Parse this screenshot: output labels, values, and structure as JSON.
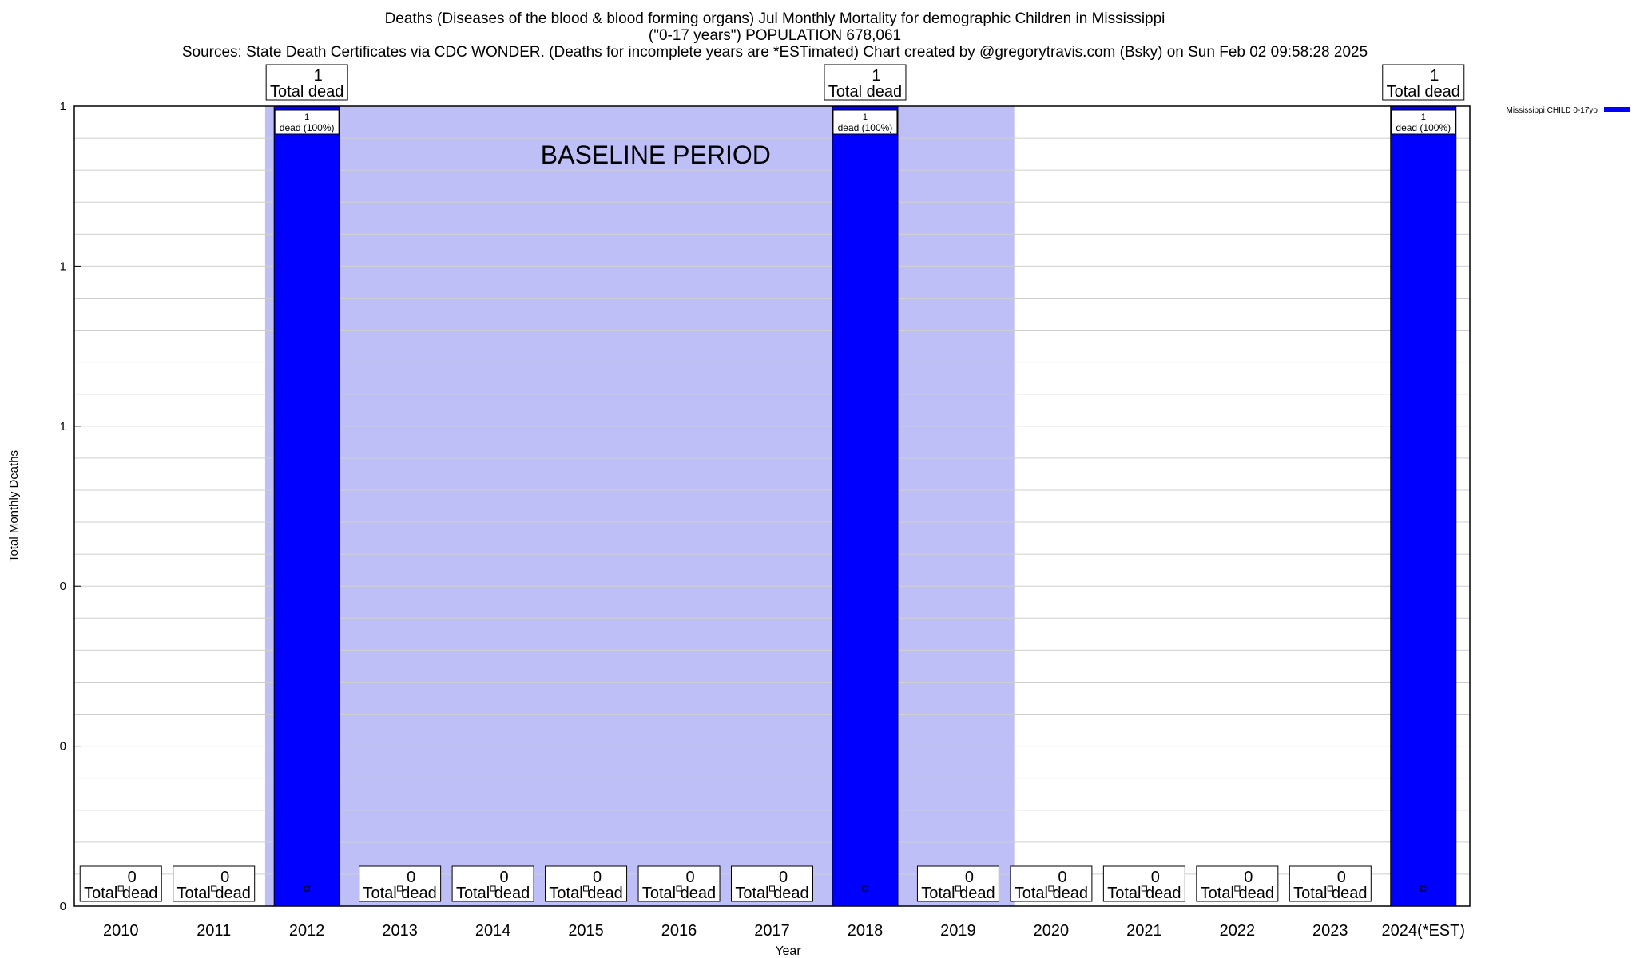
{
  "title": {
    "line1": "Deaths (Diseases of the blood & blood forming organs) Jul Monthly Mortality for demographic Children in Mississippi",
    "line2": "(\"0-17 years\") POPULATION 678,061",
    "line3": "Sources: State Death Certificates via CDC WONDER. (Deaths for incomplete years are *ESTimated)              Chart created by @gregorytravis.com (Bsky) on Sun Feb 02 09:58:28 2025"
  },
  "chart_data": {
    "type": "bar",
    "categories": [
      "2010",
      "2011",
      "2012",
      "2013",
      "2014",
      "2015",
      "2016",
      "2017",
      "2018",
      "2019",
      "2020",
      "2021",
      "2022",
      "2023",
      "2024(*EST)"
    ],
    "series": [
      {
        "name": "Mississippi CHILD 0-17yo",
        "color": "#0000ff",
        "values": [
          0,
          0,
          1,
          0,
          0,
          0,
          0,
          0,
          1,
          0,
          0,
          0,
          0,
          0,
          1
        ]
      }
    ],
    "bar_labels": [
      "",
      "",
      "1\ndead (100%)",
      "",
      "",
      "",
      "",
      "",
      "1\ndead (100%)",
      "",
      "",
      "",
      "",
      "",
      "1\ndead (100%)"
    ],
    "total_labels": [
      "0\nTotal dead",
      "0\nTotal dead",
      "1\nTotal dead",
      "0\nTotal dead",
      "0\nTotal dead",
      "0\nTotal dead",
      "0\nTotal dead",
      "0\nTotal dead",
      "1\nTotal dead",
      "0\nTotal dead",
      "0\nTotal dead",
      "0\nTotal dead",
      "0\nTotal dead",
      "0\nTotal dead",
      "1\nTotal dead"
    ],
    "xlabel": "Year",
    "ylabel": "Total Monthly Deaths",
    "ylim": [
      0,
      1
    ],
    "ytick_labels": [
      "0",
      "0",
      "0",
      "1",
      "1",
      "1"
    ],
    "grid": true,
    "legend_position": "top-right",
    "baseline": {
      "label": "BASELINE PERIOD",
      "start_category": "2012",
      "end_category": "2019",
      "color": "#bfbff7"
    }
  }
}
